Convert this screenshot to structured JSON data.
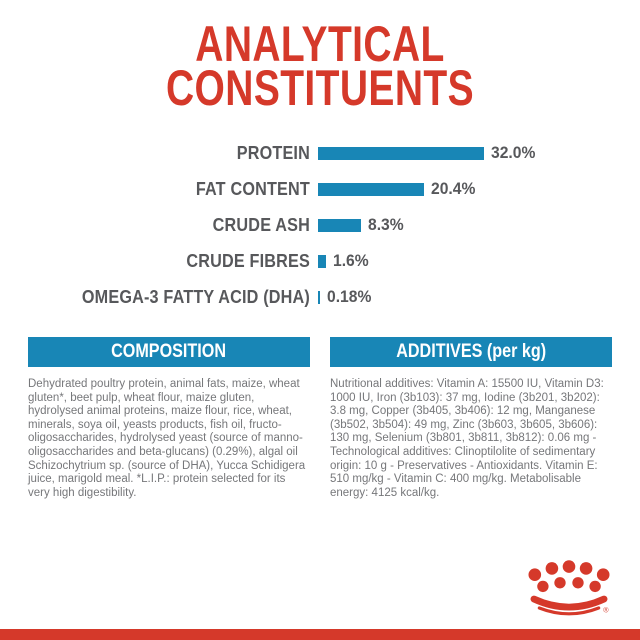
{
  "colors": {
    "brand_red": "#d5392a",
    "accent_blue": "#1886b6",
    "chart_text_dark": "#57585b",
    "body_text_grey": "#76777a"
  },
  "title": {
    "line1": "ANALYTICAL",
    "line2": "CONSTITUENTS"
  },
  "chart_data": {
    "type": "bar",
    "orientation": "horizontal",
    "title": "ANALYTICAL CONSTITUENTS",
    "categories": [
      "PROTEIN",
      "FAT CONTENT",
      "CRUDE ASH",
      "CRUDE FIBRES",
      "OMEGA-3 FATTY ACID (DHA)"
    ],
    "values": [
      32.0,
      20.4,
      8.3,
      1.6,
      0.18
    ],
    "value_labels": [
      "32.0%",
      "20.4%",
      "8.3%",
      "1.6%",
      "0.18%"
    ],
    "unit": "%",
    "xlim": [
      0,
      34
    ],
    "grid": false,
    "legend": false,
    "bar_color": "#1886b6"
  },
  "composition": {
    "header": "COMPOSITION",
    "text": "Dehydrated poultry protein, animal fats, maize, wheat gluten*, beet pulp, wheat flour, maize gluten, hydrolysed animal proteins, maize flour, rice, wheat, minerals, soya oil, yeasts products, fish oil, fructo-oligosaccharides, hydrolysed yeast (source of manno-oligosaccharides and beta-glucans) (0.29%), algal oil Schizochytrium sp. (source of DHA), Yucca Schidigera juice, marigold meal. *L.I.P.: protein selected for its very high digestibility."
  },
  "additives": {
    "header": "ADDITIVES (per kg)",
    "text": "Nutritional additives: Vitamin A: 15500 IU, Vitamin D3: 1000 IU, Iron (3b103): 37 mg, Iodine (3b201, 3b202): 3.8 mg, Copper (3b405, 3b406): 12 mg, Manganese (3b502, 3b504): 49 mg, Zinc (3b603, 3b605, 3b606): 130 mg, Selenium (3b801, 3b811, 3b812): 0.06 mg - Technological additives: Clinoptilolite of sedimentary origin: 10 g - Preservatives - Antioxidants. Vitamin E: 510 mg/kg - Vitamin C: 400 mg/kg. Metabolisable energy: 4125 kcal/kg."
  },
  "logo": {
    "name": "Royal Canin crown emblem",
    "registered_mark": "®"
  }
}
